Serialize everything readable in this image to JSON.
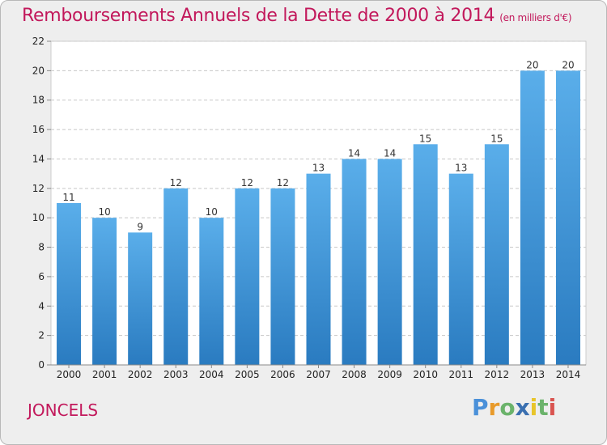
{
  "title": "Remboursements Annuels de la Dette de 2000 à 2014",
  "unit_note": "(en milliers d'€)",
  "commune": "JONCELS",
  "logo": {
    "letters": [
      "P",
      "r",
      "o",
      "x",
      "i",
      "t",
      "i"
    ],
    "colors": [
      "#4a90d9",
      "#e89a2a",
      "#6bb36b",
      "#3a6fb0",
      "#e8c52a",
      "#6bb36b",
      "#d9534f"
    ]
  },
  "chart_data": {
    "type": "bar",
    "categories": [
      "2000",
      "2001",
      "2002",
      "2003",
      "2004",
      "2005",
      "2006",
      "2007",
      "2008",
      "2009",
      "2010",
      "2011",
      "2012",
      "2013",
      "2014"
    ],
    "values": [
      11,
      10,
      9,
      12,
      10,
      12,
      12,
      13,
      14,
      14,
      15,
      13,
      15,
      20,
      20
    ],
    "data_labels": [
      "11",
      "10",
      "9",
      "12",
      "10",
      "12",
      "12",
      "13",
      "14",
      "14",
      "15",
      "13",
      "15",
      "20",
      "20"
    ],
    "yticks": [
      "0",
      "2",
      "4",
      "6",
      "8",
      "10",
      "12",
      "14",
      "16",
      "18",
      "20",
      "22"
    ],
    "ylim": [
      0,
      22
    ],
    "grid": true,
    "bar_color_top": "#5aaeea",
    "bar_color_bottom": "#2a7bc0"
  }
}
